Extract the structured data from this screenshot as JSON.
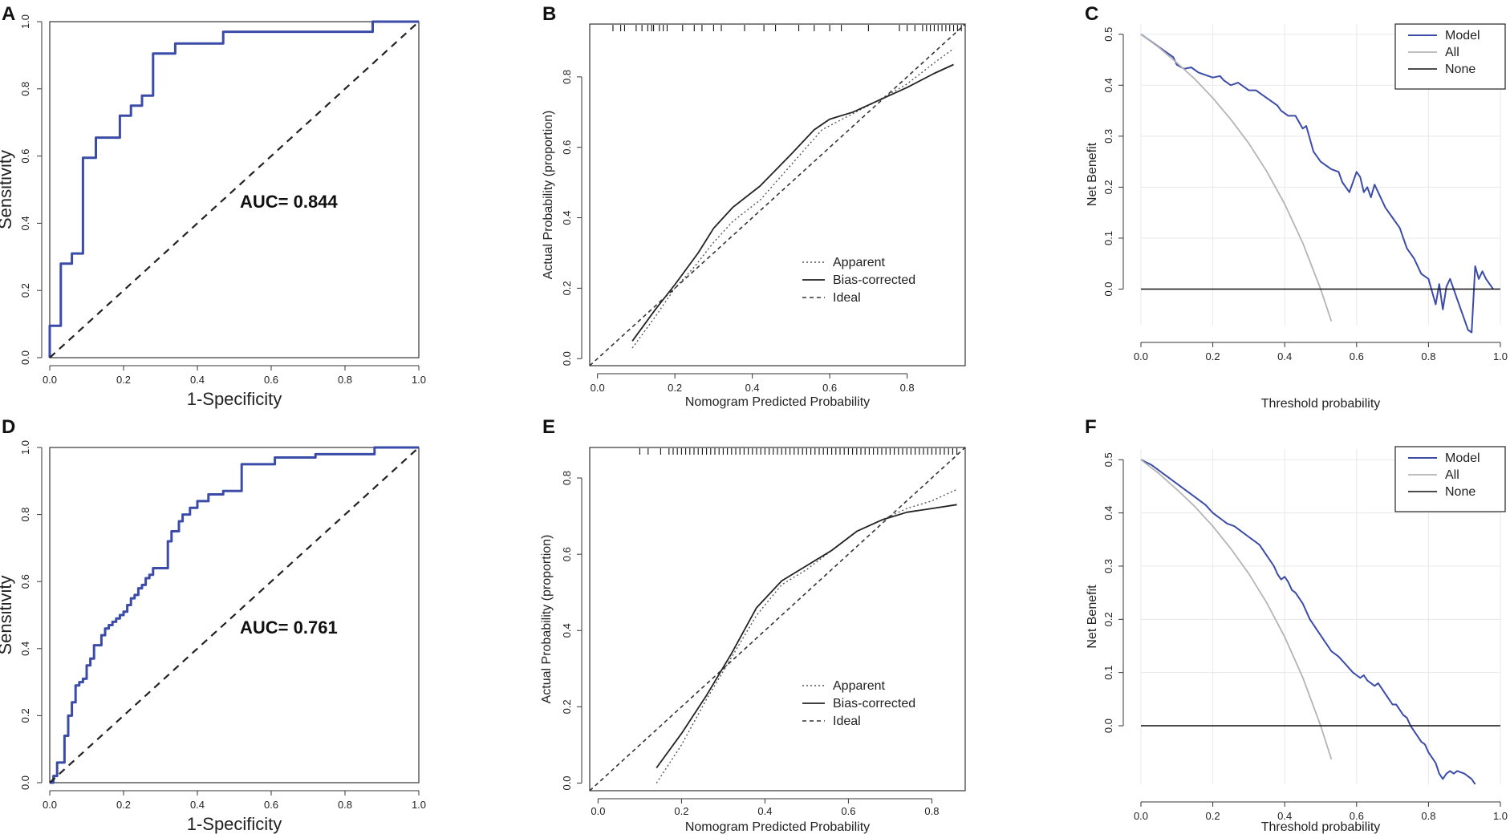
{
  "colors": {
    "model": "#3b4ba8",
    "all": "#b4b4b4",
    "none": "#111111",
    "axis": "#333333",
    "grid": "#e8e8e8"
  },
  "chart_data": [
    {
      "panel": "A",
      "type": "line",
      "subtype": "roc",
      "xlabel": "1-Specificity",
      "ylabel": "Sensitivity",
      "xlim": [
        0,
        1
      ],
      "ylim": [
        0,
        1
      ],
      "xticks": [
        "0.0",
        "0.2",
        "0.4",
        "0.6",
        "0.8",
        "1.0"
      ],
      "yticks": [
        "0.0",
        "0.2",
        "0.4",
        "0.6",
        "0.8",
        "1.0"
      ],
      "annotation": "AUC= 0.844",
      "series": [
        {
          "name": "ROC",
          "style": "step",
          "x": [
            0,
            0,
            0.03,
            0.03,
            0.06,
            0.06,
            0.09,
            0.09,
            0.125,
            0.125,
            0.19,
            0.19,
            0.22,
            0.22,
            0.25,
            0.25,
            0.28,
            0.28,
            0.34,
            0.34,
            0.47,
            0.47,
            0.875,
            0.875,
            1.0
          ],
          "y": [
            0,
            0.095,
            0.095,
            0.28,
            0.28,
            0.31,
            0.31,
            0.595,
            0.595,
            0.655,
            0.655,
            0.72,
            0.72,
            0.75,
            0.75,
            0.78,
            0.78,
            0.905,
            0.905,
            0.935,
            0.935,
            0.97,
            0.97,
            1.0,
            1.0
          ]
        },
        {
          "name": "Reference",
          "style": "dashed",
          "x": [
            0,
            1
          ],
          "y": [
            0,
            1
          ]
        }
      ]
    },
    {
      "panel": "B",
      "type": "line",
      "subtype": "calibration",
      "xlabel": "Nomogram Predicted Probability",
      "ylabel": "Actual Probability (proportion)",
      "xlim": [
        -0.02,
        0.95
      ],
      "ylim": [
        -0.02,
        0.95
      ],
      "xticks": [
        "0.0",
        "0.2",
        "0.4",
        "0.6",
        "0.8"
      ],
      "yticks": [
        "0.0",
        "0.2",
        "0.4",
        "0.6",
        "0.8"
      ],
      "legend": [
        "Apparent",
        "Bias-corrected",
        "Ideal"
      ],
      "rug": [
        0.04,
        0.06,
        0.07,
        0.1,
        0.115,
        0.13,
        0.14,
        0.145,
        0.16,
        0.17,
        0.18,
        0.22,
        0.25,
        0.27,
        0.3,
        0.32,
        0.38,
        0.43,
        0.46,
        0.52,
        0.56,
        0.6,
        0.63,
        0.7,
        0.78,
        0.8,
        0.82,
        0.84,
        0.85,
        0.86,
        0.87,
        0.88,
        0.89,
        0.9,
        0.91,
        0.92,
        0.93,
        0.94
      ],
      "series": [
        {
          "name": "Apparent",
          "style": "dotted",
          "x": [
            0.09,
            0.15,
            0.2,
            0.25,
            0.3,
            0.35,
            0.42,
            0.5,
            0.58,
            0.65,
            0.72,
            0.8,
            0.87,
            0.92
          ],
          "y": [
            0.03,
            0.12,
            0.2,
            0.26,
            0.33,
            0.39,
            0.45,
            0.55,
            0.65,
            0.69,
            0.73,
            0.78,
            0.84,
            0.88
          ]
        },
        {
          "name": "Bias-corrected",
          "style": "solid",
          "x": [
            0.09,
            0.15,
            0.2,
            0.26,
            0.3,
            0.35,
            0.42,
            0.5,
            0.56,
            0.6,
            0.66,
            0.72,
            0.8,
            0.87,
            0.92
          ],
          "y": [
            0.05,
            0.14,
            0.21,
            0.3,
            0.37,
            0.43,
            0.49,
            0.58,
            0.65,
            0.68,
            0.7,
            0.73,
            0.77,
            0.81,
            0.835
          ]
        },
        {
          "name": "Ideal",
          "style": "dashed",
          "x": [
            -0.02,
            0.95
          ],
          "y": [
            -0.02,
            0.95
          ]
        }
      ]
    },
    {
      "panel": "C",
      "type": "line",
      "subtype": "decision-curve",
      "xlabel": "Threshold probability",
      "ylabel": "Net Benefit",
      "xlim": [
        0,
        1
      ],
      "ylim": [
        -0.07,
        0.52
      ],
      "xticks": [
        "0.0",
        "0.2",
        "0.4",
        "0.6",
        "0.8",
        "1.0"
      ],
      "yticks": [
        "0.0",
        "0.1",
        "0.2",
        "0.3",
        "0.4",
        "0.5"
      ],
      "legend": [
        "Model",
        "All",
        "None"
      ],
      "series": [
        {
          "name": "Model",
          "x": [
            0,
            0.03,
            0.06,
            0.09,
            0.1,
            0.12,
            0.14,
            0.16,
            0.18,
            0.2,
            0.22,
            0.23,
            0.25,
            0.27,
            0.3,
            0.32,
            0.33,
            0.35,
            0.36,
            0.38,
            0.39,
            0.41,
            0.43,
            0.45,
            0.46,
            0.48,
            0.5,
            0.52,
            0.53,
            0.55,
            0.56,
            0.58,
            0.6,
            0.61,
            0.62,
            0.63,
            0.64,
            0.65,
            0.66,
            0.68,
            0.7,
            0.72,
            0.74,
            0.76,
            0.78,
            0.8,
            0.82,
            0.83,
            0.84,
            0.85,
            0.86,
            0.87,
            0.88,
            0.9,
            0.91,
            0.92,
            0.93,
            0.94,
            0.95,
            0.96,
            0.97,
            0.98
          ],
          "y": [
            0.5,
            0.485,
            0.47,
            0.455,
            0.44,
            0.432,
            0.435,
            0.425,
            0.42,
            0.415,
            0.418,
            0.41,
            0.4,
            0.405,
            0.39,
            0.39,
            0.385,
            0.375,
            0.37,
            0.36,
            0.35,
            0.34,
            0.34,
            0.315,
            0.32,
            0.27,
            0.25,
            0.24,
            0.235,
            0.23,
            0.21,
            0.19,
            0.23,
            0.22,
            0.19,
            0.2,
            0.18,
            0.205,
            0.19,
            0.16,
            0.14,
            0.12,
            0.08,
            0.06,
            0.03,
            0.02,
            -0.03,
            0.01,
            -0.04,
            0.005,
            0.02,
            0.0,
            -0.02,
            -0.06,
            -0.08,
            -0.085,
            0.045,
            0.02,
            0.035,
            0.02,
            0.01,
            0.0
          ]
        },
        {
          "name": "All",
          "x": [
            0,
            0.05,
            0.1,
            0.15,
            0.2,
            0.25,
            0.3,
            0.35,
            0.4,
            0.45,
            0.5,
            0.53
          ],
          "y": [
            0.5,
            0.474,
            0.444,
            0.412,
            0.375,
            0.333,
            0.286,
            0.231,
            0.167,
            0.091,
            0.0,
            -0.063
          ]
        },
        {
          "name": "None",
          "x": [
            0,
            1
          ],
          "y": [
            0,
            0
          ]
        }
      ]
    },
    {
      "panel": "D",
      "type": "line",
      "subtype": "roc",
      "xlabel": "1-Specificity",
      "ylabel": "Sensitivity",
      "xlim": [
        0,
        1
      ],
      "ylim": [
        0,
        1
      ],
      "xticks": [
        "0.0",
        "0.2",
        "0.4",
        "0.6",
        "0.8",
        "1.0"
      ],
      "yticks": [
        "0.0",
        "0.2",
        "0.4",
        "0.6",
        "0.8",
        "1.0"
      ],
      "annotation": "AUC= 0.761",
      "series": [
        {
          "name": "ROC",
          "style": "step",
          "x": [
            0,
            0.01,
            0.01,
            0.02,
            0.02,
            0.04,
            0.04,
            0.05,
            0.05,
            0.06,
            0.06,
            0.07,
            0.07,
            0.08,
            0.08,
            0.09,
            0.09,
            0.1,
            0.1,
            0.11,
            0.11,
            0.12,
            0.12,
            0.14,
            0.14,
            0.15,
            0.15,
            0.16,
            0.16,
            0.17,
            0.17,
            0.18,
            0.18,
            0.19,
            0.19,
            0.2,
            0.2,
            0.21,
            0.21,
            0.22,
            0.22,
            0.23,
            0.23,
            0.24,
            0.24,
            0.25,
            0.25,
            0.26,
            0.26,
            0.27,
            0.27,
            0.28,
            0.28,
            0.29,
            0.29,
            0.32,
            0.32,
            0.33,
            0.33,
            0.35,
            0.35,
            0.36,
            0.36,
            0.38,
            0.38,
            0.4,
            0.4,
            0.43,
            0.43,
            0.47,
            0.47,
            0.52,
            0.52,
            0.61,
            0.61,
            0.72,
            0.72,
            0.88,
            0.88,
            1.0
          ],
          "y": [
            0,
            0,
            0.02,
            0.02,
            0.06,
            0.06,
            0.14,
            0.14,
            0.2,
            0.2,
            0.24,
            0.24,
            0.29,
            0.29,
            0.3,
            0.3,
            0.31,
            0.31,
            0.35,
            0.35,
            0.37,
            0.37,
            0.41,
            0.41,
            0.44,
            0.44,
            0.46,
            0.46,
            0.47,
            0.47,
            0.48,
            0.48,
            0.49,
            0.49,
            0.5,
            0.5,
            0.51,
            0.51,
            0.53,
            0.53,
            0.55,
            0.55,
            0.56,
            0.56,
            0.58,
            0.58,
            0.59,
            0.59,
            0.61,
            0.61,
            0.62,
            0.62,
            0.64,
            0.64,
            0.64,
            0.64,
            0.72,
            0.72,
            0.75,
            0.75,
            0.78,
            0.78,
            0.8,
            0.8,
            0.82,
            0.82,
            0.84,
            0.84,
            0.86,
            0.86,
            0.87,
            0.87,
            0.95,
            0.95,
            0.97,
            0.97,
            0.98,
            0.98,
            1.0,
            1.0
          ]
        },
        {
          "name": "Reference",
          "style": "dashed",
          "x": [
            0,
            1
          ],
          "y": [
            0,
            1
          ]
        }
      ]
    },
    {
      "panel": "E",
      "type": "line",
      "subtype": "calibration",
      "xlabel": "Nomogram Predicted Probability",
      "ylabel": "Actual Probability (proportion)",
      "xlim": [
        -0.02,
        0.88
      ],
      "ylim": [
        -0.02,
        0.88
      ],
      "xticks": [
        "0.0",
        "0.2",
        "0.4",
        "0.6",
        "0.8"
      ],
      "yticks": [
        "0.0",
        "0.2",
        "0.4",
        "0.6",
        "0.8"
      ],
      "legend": [
        "Apparent",
        "Bias-corrected",
        "Ideal"
      ],
      "rug": [
        0.1,
        0.12,
        0.15,
        0.17,
        0.18,
        0.19,
        0.2,
        0.21,
        0.22,
        0.23,
        0.24,
        0.25,
        0.26,
        0.27,
        0.28,
        0.29,
        0.3,
        0.31,
        0.32,
        0.33,
        0.34,
        0.35,
        0.36,
        0.37,
        0.38,
        0.39,
        0.4,
        0.41,
        0.42,
        0.43,
        0.44,
        0.45,
        0.46,
        0.47,
        0.48,
        0.49,
        0.5,
        0.51,
        0.52,
        0.53,
        0.54,
        0.55,
        0.56,
        0.57,
        0.58,
        0.59,
        0.6,
        0.61,
        0.62,
        0.63,
        0.64,
        0.65,
        0.66,
        0.67,
        0.68,
        0.69,
        0.7,
        0.71,
        0.72,
        0.73,
        0.74,
        0.75,
        0.76,
        0.77,
        0.78,
        0.79,
        0.8,
        0.81,
        0.82,
        0.83,
        0.84,
        0.85,
        0.86
      ],
      "series": [
        {
          "name": "Apparent",
          "style": "dotted",
          "x": [
            0.14,
            0.2,
            0.26,
            0.32,
            0.38,
            0.44,
            0.5,
            0.56,
            0.62,
            0.68,
            0.74,
            0.8,
            0.86
          ],
          "y": [
            0.0,
            0.1,
            0.22,
            0.33,
            0.44,
            0.52,
            0.56,
            0.61,
            0.66,
            0.69,
            0.72,
            0.74,
            0.77
          ]
        },
        {
          "name": "Bias-corrected",
          "style": "solid",
          "x": [
            0.14,
            0.2,
            0.26,
            0.32,
            0.38,
            0.44,
            0.5,
            0.56,
            0.62,
            0.68,
            0.74,
            0.8,
            0.86
          ],
          "y": [
            0.04,
            0.13,
            0.23,
            0.34,
            0.46,
            0.53,
            0.57,
            0.61,
            0.66,
            0.69,
            0.71,
            0.72,
            0.73
          ]
        },
        {
          "name": "Ideal",
          "style": "dashed",
          "x": [
            -0.02,
            0.88
          ],
          "y": [
            -0.02,
            0.88
          ]
        }
      ]
    },
    {
      "panel": "F",
      "type": "line",
      "subtype": "decision-curve",
      "xlabel": "Threshold probability",
      "ylabel": "Net Benefit",
      "xlim": [
        0,
        1
      ],
      "ylim": [
        -0.11,
        0.52
      ],
      "xticks": [
        "0.0",
        "0.2",
        "0.4",
        "0.6",
        "0.8",
        "1.0"
      ],
      "yticks": [
        "0.0",
        "0.1",
        "0.2",
        "0.3",
        "0.4",
        "0.5"
      ],
      "legend": [
        "Model",
        "All",
        "None"
      ],
      "series": [
        {
          "name": "Model",
          "x": [
            0,
            0.03,
            0.06,
            0.09,
            0.12,
            0.15,
            0.18,
            0.2,
            0.22,
            0.24,
            0.26,
            0.28,
            0.3,
            0.31,
            0.32,
            0.33,
            0.34,
            0.35,
            0.37,
            0.38,
            0.39,
            0.4,
            0.41,
            0.42,
            0.43,
            0.45,
            0.47,
            0.49,
            0.51,
            0.53,
            0.55,
            0.57,
            0.59,
            0.6,
            0.61,
            0.62,
            0.63,
            0.64,
            0.65,
            0.66,
            0.67,
            0.68,
            0.69,
            0.7,
            0.71,
            0.72,
            0.73,
            0.74,
            0.75,
            0.76,
            0.77,
            0.78,
            0.79,
            0.8,
            0.81,
            0.82,
            0.83,
            0.84,
            0.85,
            0.86,
            0.87,
            0.88,
            0.9,
            0.92,
            0.93
          ],
          "y": [
            0.5,
            0.49,
            0.475,
            0.46,
            0.445,
            0.43,
            0.415,
            0.4,
            0.39,
            0.38,
            0.375,
            0.365,
            0.355,
            0.35,
            0.345,
            0.34,
            0.33,
            0.32,
            0.3,
            0.285,
            0.275,
            0.28,
            0.27,
            0.255,
            0.25,
            0.23,
            0.2,
            0.18,
            0.16,
            0.14,
            0.13,
            0.115,
            0.1,
            0.095,
            0.09,
            0.095,
            0.085,
            0.08,
            0.075,
            0.08,
            0.07,
            0.06,
            0.05,
            0.04,
            0.04,
            0.03,
            0.02,
            0.015,
            0.0,
            -0.01,
            -0.02,
            -0.03,
            -0.035,
            -0.05,
            -0.06,
            -0.07,
            -0.09,
            -0.1,
            -0.09,
            -0.085,
            -0.09,
            -0.085,
            -0.09,
            -0.1,
            -0.11
          ]
        },
        {
          "name": "All",
          "x": [
            0,
            0.05,
            0.1,
            0.15,
            0.2,
            0.25,
            0.3,
            0.35,
            0.4,
            0.45,
            0.5,
            0.53
          ],
          "y": [
            0.5,
            0.474,
            0.444,
            0.412,
            0.375,
            0.333,
            0.286,
            0.231,
            0.167,
            0.091,
            0.0,
            -0.063
          ]
        },
        {
          "name": "None",
          "x": [
            0,
            1
          ],
          "y": [
            0,
            0
          ]
        }
      ]
    }
  ]
}
